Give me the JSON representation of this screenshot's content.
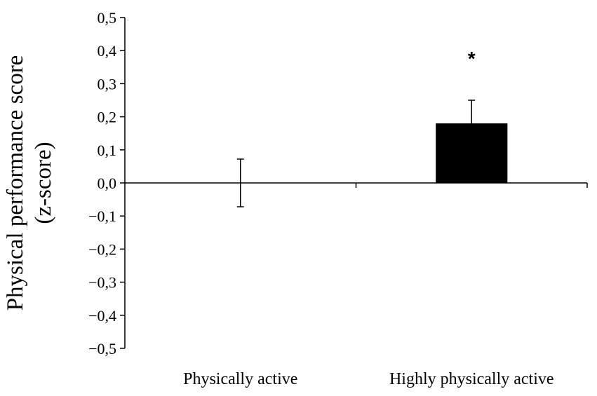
{
  "chart_data": {
    "type": "bar",
    "categories": [
      "Physically active",
      "Highly physically active"
    ],
    "values": [
      0.0,
      0.18
    ],
    "error": [
      0.072,
      0.07
    ],
    "ylabel_lines": [
      "Physical performance score",
      "(z-score)"
    ],
    "ylim": [
      -0.5,
      0.5
    ],
    "yticks": [
      0.5,
      0.4,
      0.3,
      0.2,
      0.1,
      0.0,
      -0.1,
      -0.2,
      -0.3,
      -0.4,
      -0.5
    ],
    "ytick_labels": [
      "0,5",
      "0,4",
      "0,3",
      "0,2",
      "0,1",
      "0,0",
      "−0,1",
      "−0,2",
      "−0,3",
      "−0,4",
      "−0,5"
    ],
    "bar_color": "#000000",
    "annotations": [
      {
        "category": "Highly physically active",
        "text": "*"
      }
    ],
    "grid": false,
    "legend": "none"
  }
}
